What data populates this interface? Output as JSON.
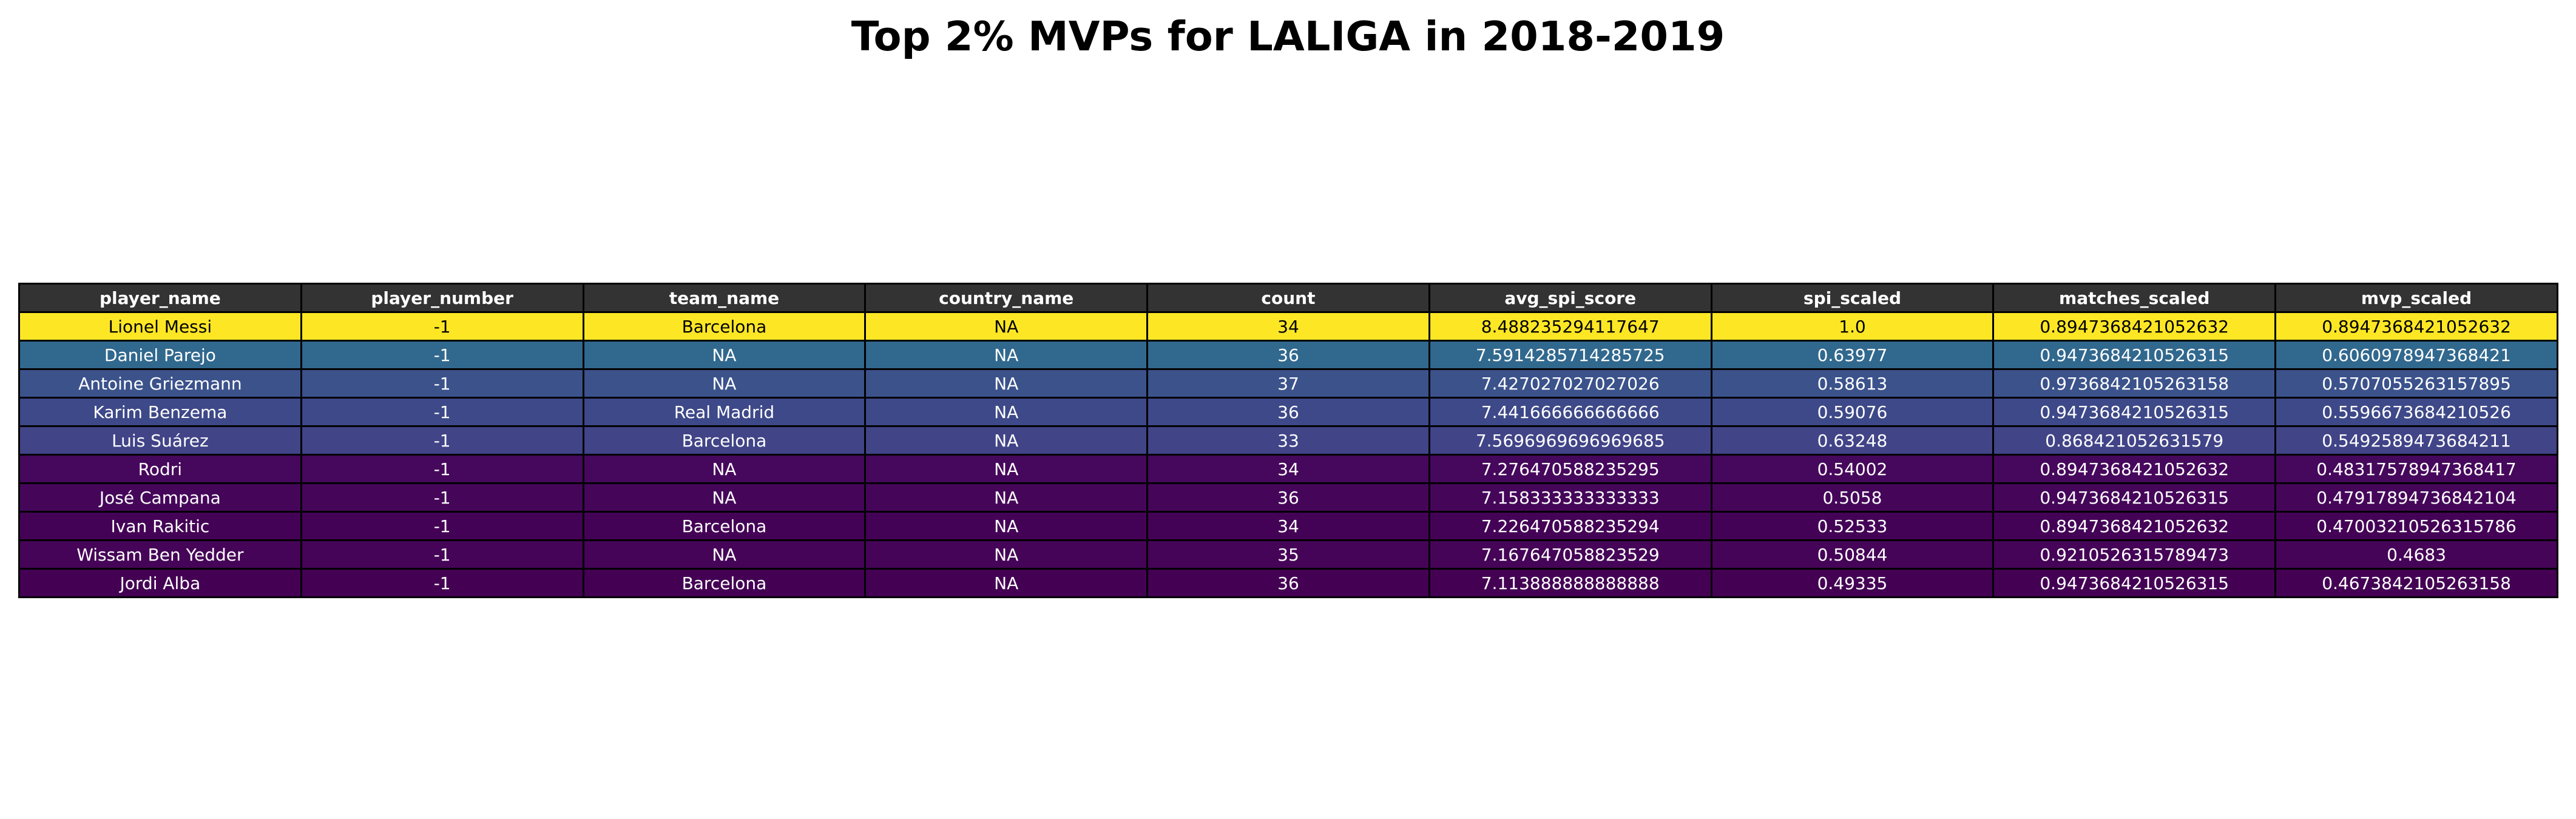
{
  "chart_data": {
    "type": "table",
    "title": "Top 2% MVPs for LALIGA in 2018-2019",
    "columns": [
      "player_name",
      "player_number",
      "team_name",
      "country_name",
      "count",
      "avg_spi_score",
      "spi_scaled",
      "matches_scaled",
      "mvp_scaled"
    ],
    "rows": [
      {
        "cells": [
          "Lionel Messi",
          "-1",
          "Barcelona",
          "NA",
          "34",
          "8.488235294117647",
          "1.0",
          "0.8947368421052632",
          "0.8947368421052632"
        ],
        "color": "#fde725",
        "text_color": "#000000"
      },
      {
        "cells": [
          "Daniel Parejo",
          "-1",
          "NA",
          "NA",
          "36",
          "7.5914285714285725",
          "0.63977",
          "0.9473684210526315",
          "0.6060978947368421"
        ],
        "color": "#31688e",
        "text_color": "#ffffff"
      },
      {
        "cells": [
          "Antoine Griezmann",
          "-1",
          "NA",
          "NA",
          "37",
          "7.427027027027026",
          "0.58613",
          "0.9736842105263158",
          "0.5707055263157895"
        ],
        "color": "#3b528b",
        "text_color": "#ffffff"
      },
      {
        "cells": [
          "Karim Benzema",
          "-1",
          "Real Madrid",
          "NA",
          "36",
          "7.441666666666666",
          "0.59076",
          "0.9473684210526315",
          "0.5596673684210526"
        ],
        "color": "#3e4989",
        "text_color": "#ffffff"
      },
      {
        "cells": [
          "Luis Suárez",
          "-1",
          "Barcelona",
          "NA",
          "33",
          "7.5696969696969685",
          "0.63248",
          "0.868421052631579",
          "0.5492589473684211"
        ],
        "color": "#414487",
        "text_color": "#ffffff"
      },
      {
        "cells": [
          "Rodri",
          "-1",
          "NA",
          "NA",
          "34",
          "7.276470588235295",
          "0.54002",
          "0.8947368421052632",
          "0.48317578947368417"
        ],
        "color": "#46085c",
        "text_color": "#ffffff"
      },
      {
        "cells": [
          "José Campana",
          "-1",
          "NA",
          "NA",
          "36",
          "7.158333333333333",
          "0.5058",
          "0.9473684210526315",
          "0.47917894736842104"
        ],
        "color": "#45065a",
        "text_color": "#ffffff"
      },
      {
        "cells": [
          "Ivan Rakitic",
          "-1",
          "Barcelona",
          "NA",
          "34",
          "7.226470588235294",
          "0.52533",
          "0.8947368421052632",
          "0.47003210526315786"
        ],
        "color": "#440256",
        "text_color": "#ffffff"
      },
      {
        "cells": [
          "Wissam Ben Yedder",
          "-1",
          "NA",
          "NA",
          "35",
          "7.167647058823529",
          "0.50844",
          "0.9210526315789473",
          "0.4683"
        ],
        "color": "#450457",
        "text_color": "#ffffff"
      },
      {
        "cells": [
          "Jordi Alba",
          "-1",
          "Barcelona",
          "NA",
          "36",
          "7.113888888888888",
          "0.49335",
          "0.9473684210526315",
          "0.4673842105263158"
        ],
        "color": "#440154",
        "text_color": "#ffffff"
      }
    ],
    "header_color": "#333333"
  }
}
